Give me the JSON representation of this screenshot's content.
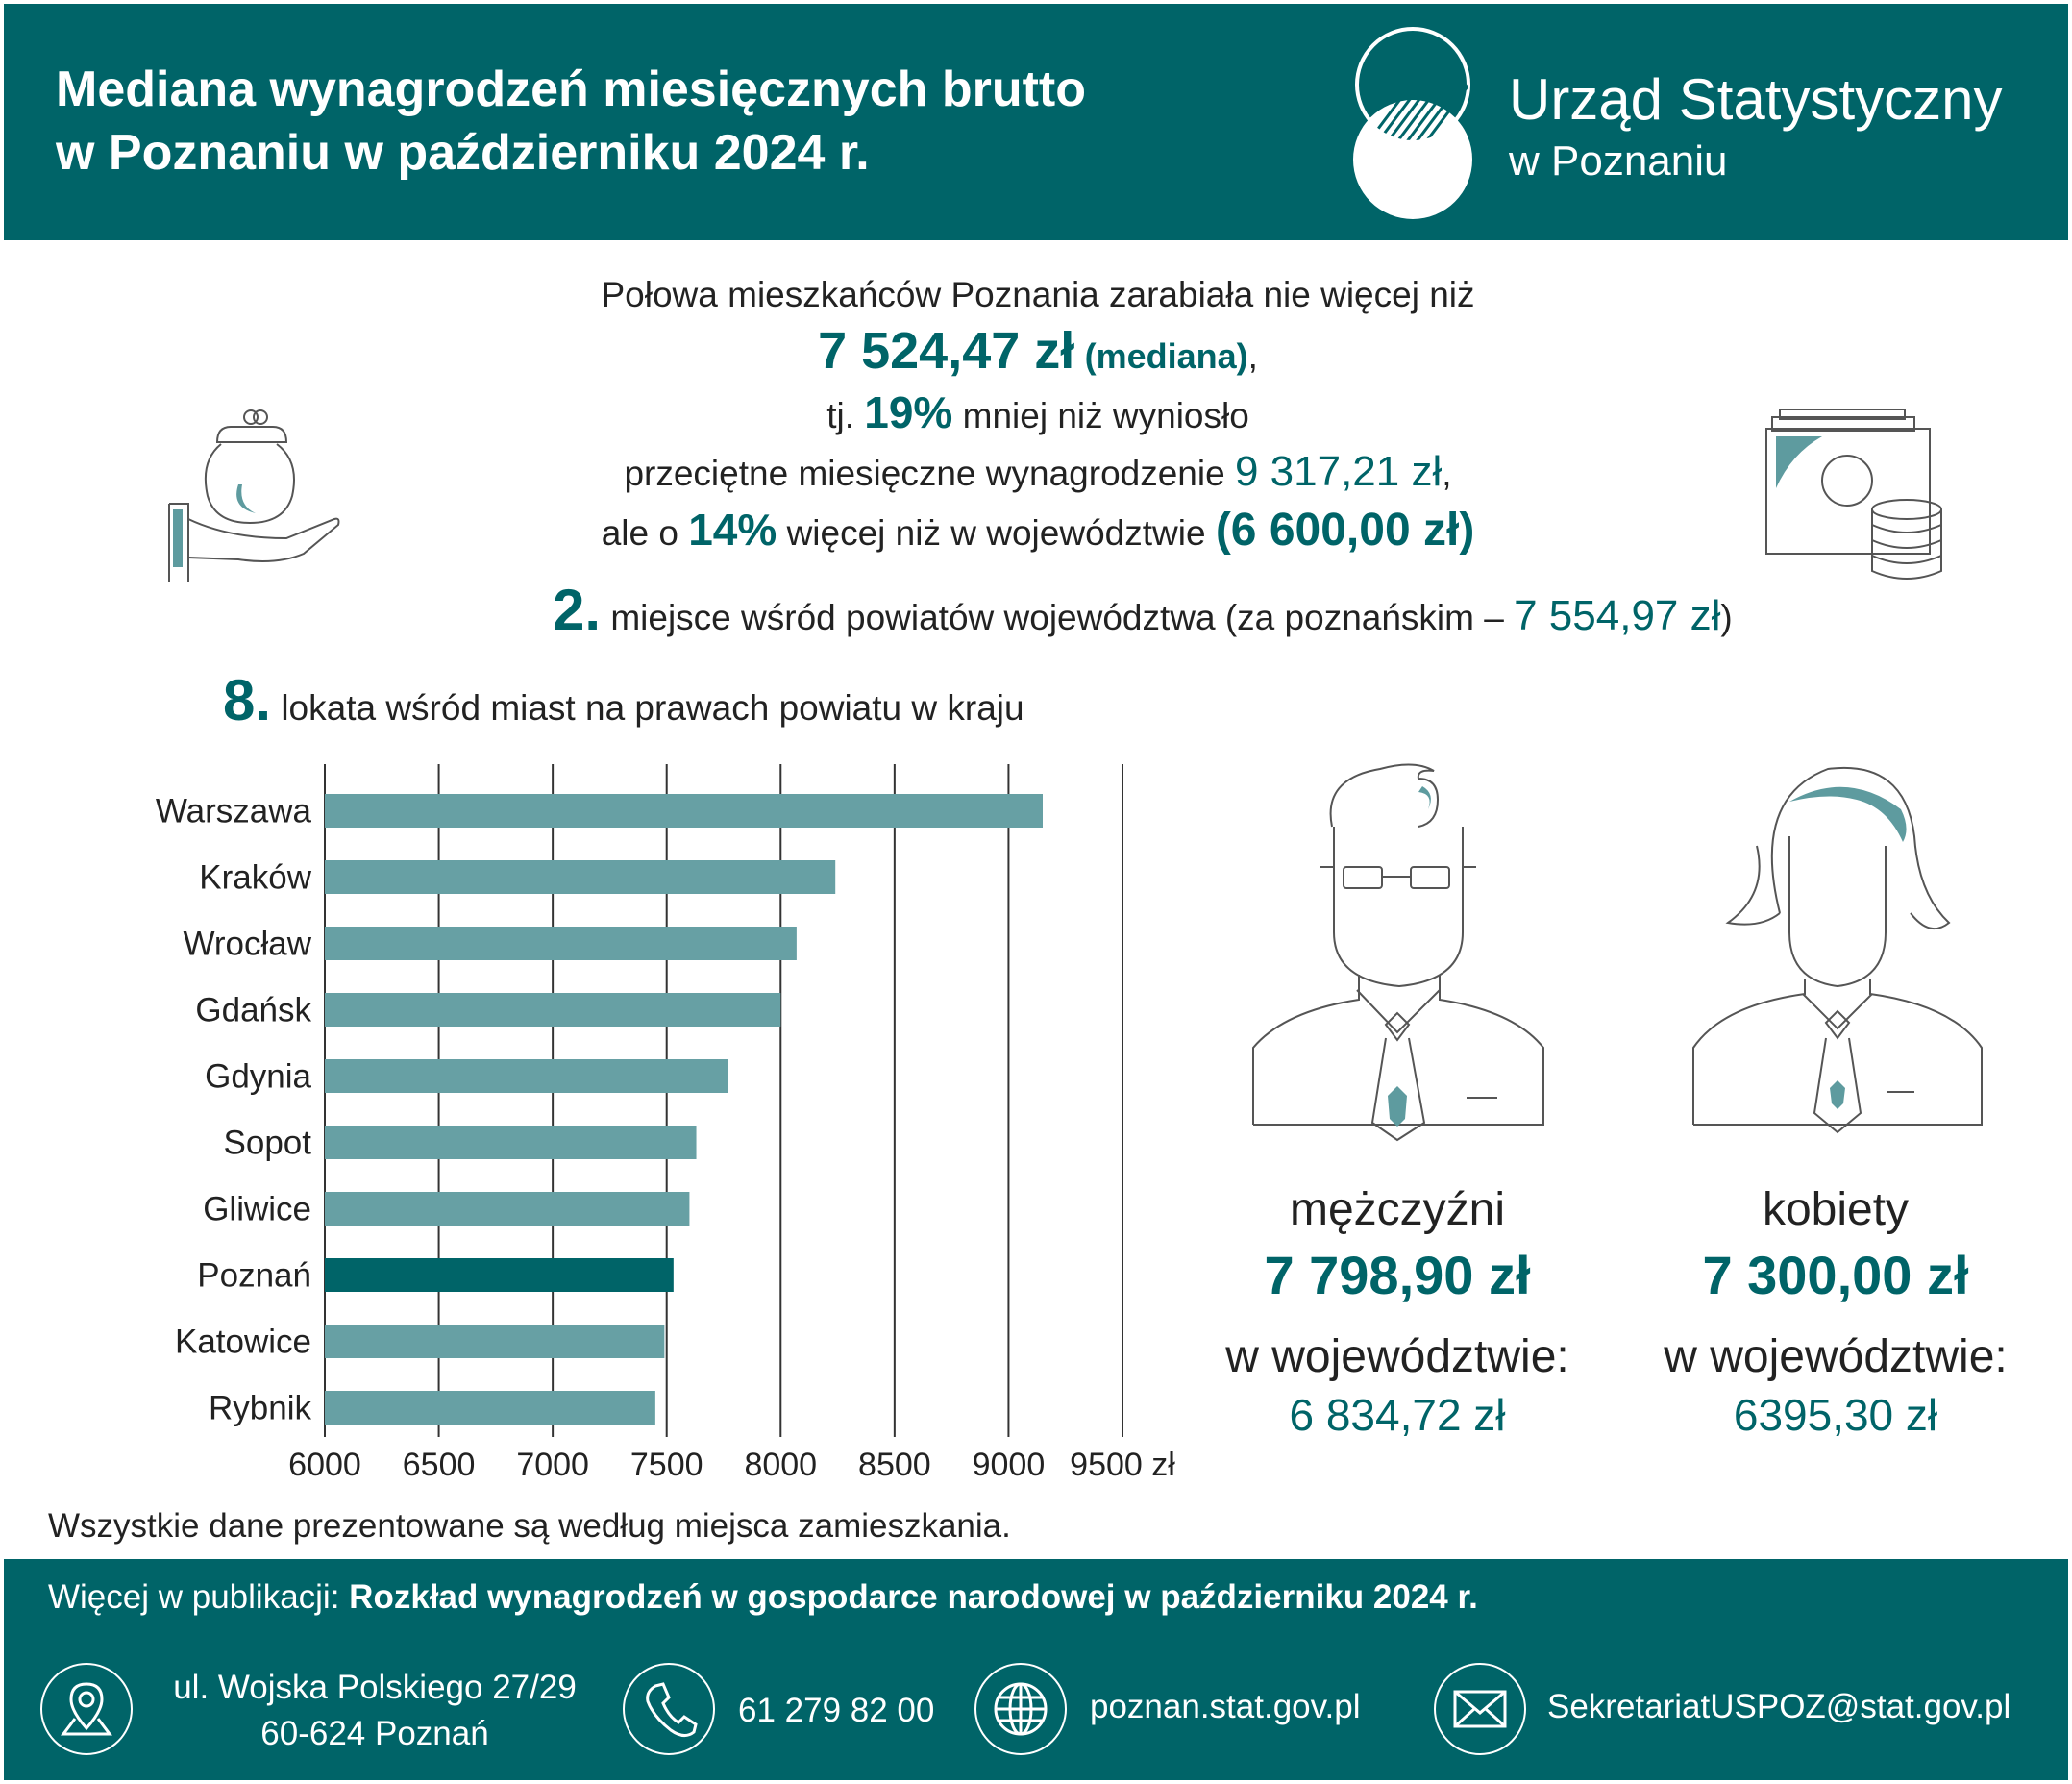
{
  "header": {
    "title_line1": "Mediana wynagrodzeń miesięcznych brutto",
    "title_line2": "w Poznaniu w październiku 2024 r.",
    "logo_line1": "Urząd Statystyczny",
    "logo_line2": "w Poznaniu"
  },
  "intro": {
    "line1": "Połowa mieszkańców Poznania zarabiała nie więcej niż",
    "median_value": "7 524,47 zł",
    "median_label": "(mediana)",
    "comma": ",",
    "line3_pre": "tj.",
    "pct1": "19%",
    "line3_post": "mniej niż wyniosło",
    "line4_pre": "przeciętne miesięczne wynagrodzenie",
    "avg_value": "9 317,21 zł",
    "line5_pre": "ale o",
    "pct2": "14%",
    "line5_post": "więcej niż w województwie",
    "voiv_value": "(6 600,00 zł)"
  },
  "rank_county": {
    "num": "2.",
    "text": "miejsce wśród powiatów województwa (za poznańskim –",
    "value": "7 554,97 zł",
    "close": ")"
  },
  "rank_city": {
    "num": "8.",
    "text": "lokata wśród miast na prawach powiatu w kraju"
  },
  "colors": {
    "accent": "#006468",
    "bar": "#67a0a4",
    "highlight_bar": "#006468",
    "purse_accent": "#5e9b9f"
  },
  "chart_data": {
    "type": "bar",
    "orientation": "horizontal",
    "categories": [
      "Warszawa",
      "Kraków",
      "Wrocław",
      "Gdańsk",
      "Gdynia",
      "Sopot",
      "Gliwice",
      "Poznań",
      "Katowice",
      "Rybnik"
    ],
    "values": [
      9150,
      8240,
      8070,
      8000,
      7770,
      7630,
      7600,
      7530,
      7490,
      7450
    ],
    "highlight": "Poznań",
    "xlim": [
      6000,
      9500
    ],
    "xticks": [
      "6000",
      "6500",
      "7000",
      "7500",
      "8000",
      "8500",
      "9000",
      "9500 zł"
    ],
    "grid": true
  },
  "men": {
    "label": "mężczyźni",
    "value": "7 798,90 zł",
    "voiv_label": "w województwie:",
    "voiv_value": "6 834,72 zł"
  },
  "women": {
    "label": "kobiety",
    "value": "7 300,00 zł",
    "voiv_label": "w województwie:",
    "voiv_value": "6395,30 zł"
  },
  "note": "Wszystkie dane prezentowane są według miejsca zamieszkania.",
  "footer": {
    "pub_label": "Więcej w publikacji:",
    "pub_title": "Rozkład wynagrodzeń w gospodarce narodowej w październiku 2024 r.",
    "address_line1": "ul. Wojska Polskiego 27/29",
    "address_line2": "60-624 Poznań",
    "phone": "61 279 82 00",
    "website": "poznan.stat.gov.pl",
    "email": "SekretariatUSPOZ@stat.gov.pl",
    "icons": [
      "location-icon",
      "phone-icon",
      "globe-icon",
      "envelope-icon"
    ]
  }
}
